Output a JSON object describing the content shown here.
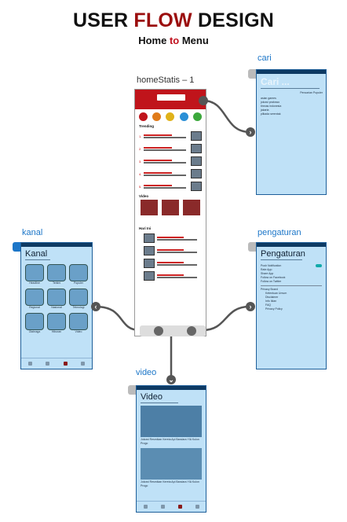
{
  "title": {
    "part1": "USER ",
    "part2": "FLOW",
    "part3": " DESIGN"
  },
  "subtitle": {
    "part1": "Home ",
    "part2": "to",
    "part3": " Menu"
  },
  "home": {
    "label": "homeStatis – 1",
    "trending": "Trending",
    "video": "Video",
    "hari_ini": "Hari Ini"
  },
  "cari": {
    "label": "cari",
    "screen_title": "Cari ...",
    "suggestion": "Pencarian Populer",
    "items": [
      "asian games",
      "jokowi prabowo",
      "timnas indonesia",
      "jakarta",
      "pilkada serentak"
    ]
  },
  "kanal": {
    "label": "kanal",
    "screen_title": "Kanal",
    "items": [
      "Headline",
      "Terkini",
      "Populer",
      "Regional",
      "Nasional",
      "Teknologi",
      "Olahraga",
      "Hiburan",
      "Video"
    ]
  },
  "pengaturan": {
    "label": "pengaturan",
    "screen_title": "Pengaturan",
    "items": [
      "Push Notification",
      "Rate App",
      "Share App",
      "Follow on Facebook",
      "Follow on Twitter"
    ],
    "privacy_label": "Privacy Board",
    "sub_items": [
      "Ketentuan Umum",
      "Disclaimer",
      "Info Iklan",
      "FAQ",
      "Privacy Policy"
    ]
  },
  "video": {
    "label": "video",
    "screen_title": "Video",
    "captions": [
      "Jokowi Resmikan Kereta Api Bandara YIA Kulon Progo",
      "Jokowi Resmikan Kereta Api Bandara YIA Kulon Progo"
    ]
  },
  "colors": {
    "accent": "#9b0e0e",
    "frame_bg": "#bfe1f7",
    "frame_border": "#1e5f9a",
    "label_blue": "#1c76c8",
    "connector": "#555555"
  }
}
